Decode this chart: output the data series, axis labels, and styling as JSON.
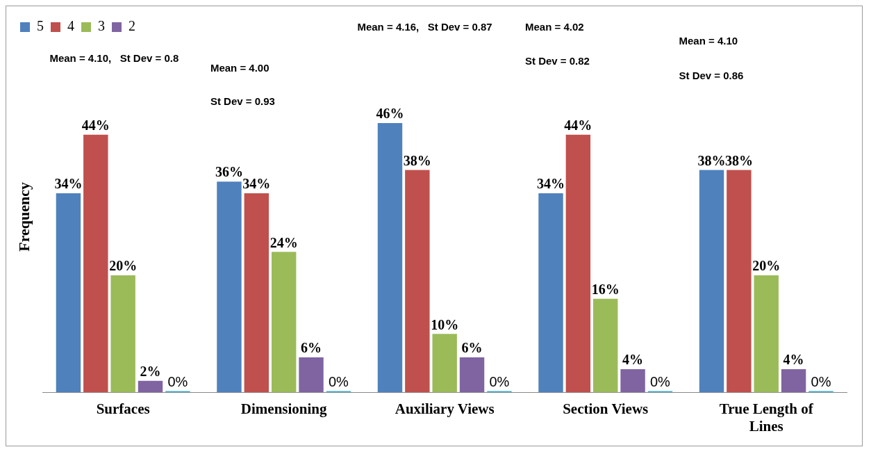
{
  "chart_data": {
    "type": "bar",
    "ylabel": "Frequency",
    "categories": [
      "Surfaces",
      "Dimensioning",
      "Auxiliary Views",
      "Section Views",
      "True Length of Lines"
    ],
    "series": [
      {
        "name": "5",
        "color": "#4f81bd",
        "values": [
          34,
          36,
          46,
          34,
          38
        ],
        "value_labels": [
          "34%",
          "36%",
          "46%",
          "34%",
          "38%"
        ]
      },
      {
        "name": "4",
        "color": "#c0504d",
        "values": [
          44,
          34,
          38,
          44,
          38
        ],
        "value_labels": [
          "44%",
          "34%",
          "38%",
          "44%",
          "38%"
        ]
      },
      {
        "name": "3",
        "color": "#9bbb59",
        "values": [
          20,
          24,
          10,
          16,
          20
        ],
        "value_labels": [
          "20%",
          "24%",
          "10%",
          "16%",
          "20%"
        ]
      },
      {
        "name": "2",
        "color": "#8064a2",
        "values": [
          2,
          6,
          6,
          4,
          4
        ],
        "value_labels": [
          "2%",
          "6%",
          "6%",
          "4%",
          "4%"
        ]
      },
      {
        "color": "#4bacc6",
        "values": [
          0,
          0,
          0,
          0,
          0
        ],
        "value_labels": [
          "0%",
          "0%",
          "0%",
          "0%",
          "0%"
        ]
      }
    ],
    "tick_labels": "x",
    "grid": false,
    "legend": "top left",
    "annotations": [
      "Mean = 4.10,   St Dev = 0.8",
      "Mean = 4.00",
      "St Dev = 0.93",
      "Mean = 4.16,   St Dev = 0.87",
      "Mean = 4.02",
      "St Dev = 0.82",
      "Mean = 4.10",
      "St Dev = 0.86"
    ]
  }
}
